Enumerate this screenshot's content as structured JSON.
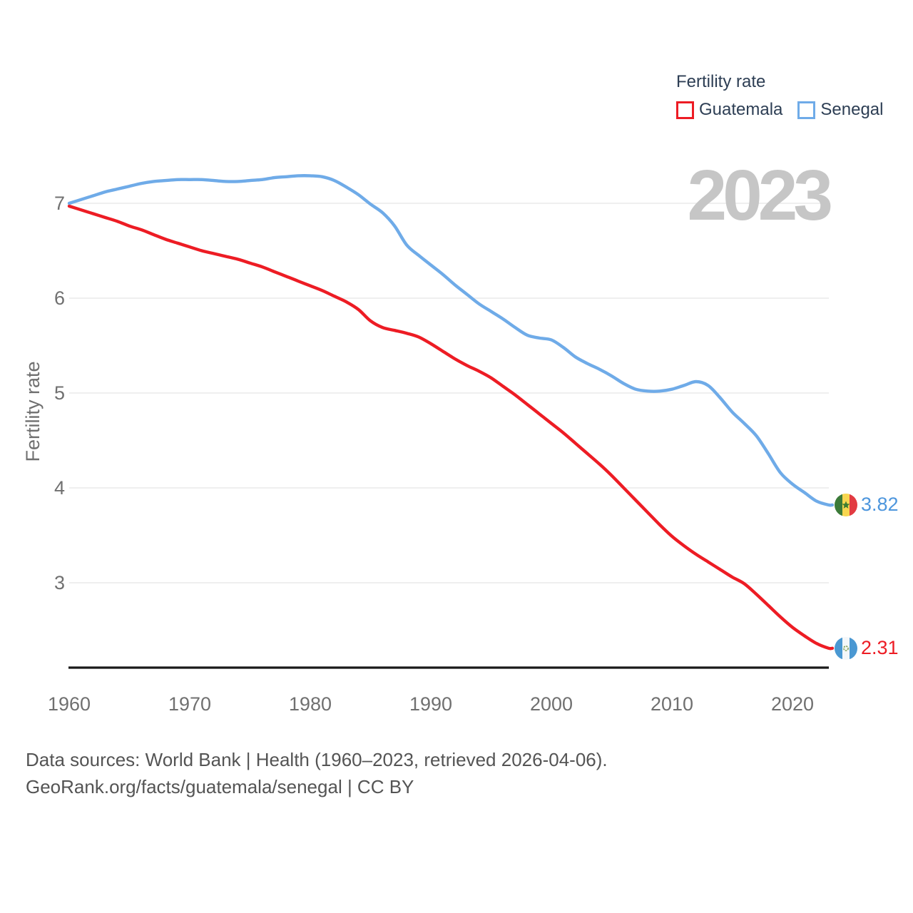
{
  "legend": {
    "title": "Fertility rate"
  },
  "watermark": "2023",
  "footer": {
    "line1": "Data sources: World Bank | Health (1960–2023, retrieved 2026-04-06).",
    "line2": "GeoRank.org/facts/guatemala/senegal | CC BY"
  },
  "chart_data": {
    "type": "line",
    "title": "Fertility rate",
    "ylabel": "Fertility rate",
    "xlabel": "",
    "watermark_year": "2023",
    "grid": "horizontal",
    "legend_position": "top-right",
    "xlim": [
      1960,
      2023
    ],
    "ylim": [
      2.1,
      7.45
    ],
    "yticks": [
      7,
      6,
      5,
      4,
      3
    ],
    "xticks": [
      1960,
      1970,
      1980,
      1990,
      2000,
      2010,
      2020
    ],
    "x": [
      1960,
      1961,
      1962,
      1963,
      1964,
      1965,
      1966,
      1967,
      1968,
      1969,
      1970,
      1971,
      1972,
      1973,
      1974,
      1975,
      1976,
      1977,
      1978,
      1979,
      1980,
      1981,
      1982,
      1983,
      1984,
      1985,
      1986,
      1987,
      1988,
      1989,
      1990,
      1991,
      1992,
      1993,
      1994,
      1995,
      1996,
      1997,
      1998,
      1999,
      2000,
      2001,
      2002,
      2003,
      2004,
      2005,
      2006,
      2007,
      2008,
      2009,
      2010,
      2011,
      2012,
      2013,
      2014,
      2015,
      2016,
      2017,
      2018,
      2019,
      2020,
      2021,
      2022,
      2023
    ],
    "series": [
      {
        "name": "Guatemala",
        "color": "#ed1c24",
        "label_color": "#ed1c24",
        "end_label": "2.31",
        "end_value": 2.31,
        "flag": "guatemala",
        "values": [
          6.97,
          6.93,
          6.89,
          6.85,
          6.81,
          6.76,
          6.72,
          6.67,
          6.62,
          6.58,
          6.54,
          6.5,
          6.47,
          6.44,
          6.41,
          6.37,
          6.33,
          6.28,
          6.23,
          6.18,
          6.13,
          6.08,
          6.02,
          5.96,
          5.88,
          5.76,
          5.69,
          5.66,
          5.63,
          5.59,
          5.52,
          5.44,
          5.36,
          5.29,
          5.23,
          5.16,
          5.07,
          4.98,
          4.88,
          4.78,
          4.68,
          4.58,
          4.47,
          4.36,
          4.25,
          4.13,
          4.0,
          3.87,
          3.74,
          3.61,
          3.49,
          3.39,
          3.3,
          3.22,
          3.14,
          3.06,
          2.99,
          2.88,
          2.76,
          2.64,
          2.53,
          2.44,
          2.36,
          2.31
        ]
      },
      {
        "name": "Senegal",
        "color": "#6fabe8",
        "label_color": "#4d96dd",
        "end_label": "3.82",
        "end_value": 3.82,
        "flag": "senegal",
        "values": [
          7.0,
          7.04,
          7.08,
          7.12,
          7.15,
          7.18,
          7.21,
          7.23,
          7.24,
          7.25,
          7.25,
          7.25,
          7.24,
          7.23,
          7.23,
          7.24,
          7.25,
          7.27,
          7.28,
          7.29,
          7.29,
          7.28,
          7.24,
          7.17,
          7.09,
          6.99,
          6.9,
          6.76,
          6.56,
          6.45,
          6.35,
          6.25,
          6.14,
          6.04,
          5.94,
          5.86,
          5.78,
          5.69,
          5.61,
          5.58,
          5.56,
          5.48,
          5.38,
          5.31,
          5.25,
          5.18,
          5.1,
          5.04,
          5.02,
          5.02,
          5.04,
          5.08,
          5.12,
          5.08,
          4.95,
          4.8,
          4.68,
          4.55,
          4.36,
          4.16,
          4.04,
          3.95,
          3.86,
          3.82
        ]
      }
    ]
  }
}
